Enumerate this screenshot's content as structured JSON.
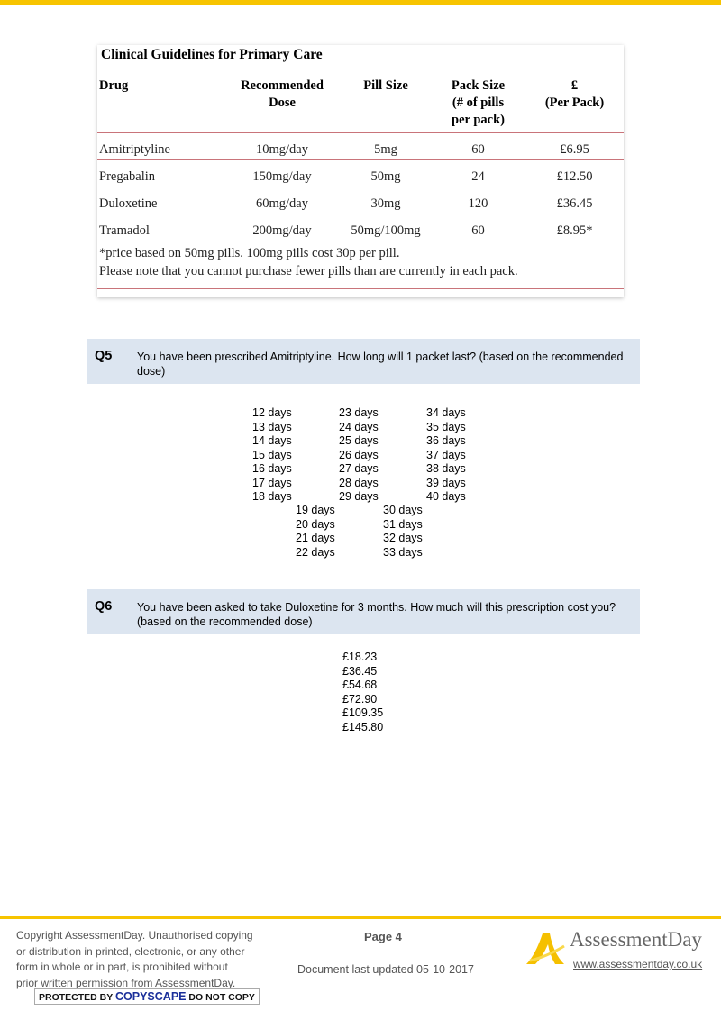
{
  "guidelines": {
    "title": "Clinical Guidelines for Primary Care",
    "headers": [
      "Drug",
      "Recommended Dose",
      "Pill Size",
      "Pack Size (# of pills per pack)",
      "£ (Per Pack)"
    ],
    "rows": [
      [
        "Amitriptyline",
        "10mg/day",
        "5mg",
        "60",
        "£6.95"
      ],
      [
        "Pregabalin",
        "150mg/day",
        "50mg",
        "24",
        "£12.50"
      ],
      [
        "Duloxetine",
        "60mg/day",
        "30mg",
        "120",
        "£36.45"
      ],
      [
        "Tramadol",
        "200mg/day",
        "50mg/100mg",
        "60",
        "£8.95*"
      ]
    ],
    "note1": "*price based on 50mg pills.  100mg pills cost 30p per pill.",
    "note2": "Please note that you cannot purchase fewer pills than are currently in each pack."
  },
  "q5": {
    "number": "Q5",
    "text": "You have been prescribed Amitriptyline. How long will 1 packet last? (based on the recommended dose)",
    "col1": [
      "12 days",
      "13 days",
      "14 days",
      "15 days",
      "16 days",
      "17 days",
      "18 days"
    ],
    "col2": [
      "23 days",
      "24 days",
      "25 days",
      "26 days",
      "27 days",
      "28 days",
      "29 days"
    ],
    "col3": [
      "34 days",
      "35 days",
      "36 days",
      "37 days",
      "38 days",
      "39 days",
      "40 days"
    ],
    "col4": [
      "19 days",
      "20 days",
      "21 days",
      "22 days"
    ],
    "col5": [
      "30 days",
      "31 days",
      "32 days",
      "33 days"
    ]
  },
  "q6": {
    "number": "Q6",
    "text": "You have been asked to take Duloxetine for 3 months.  How much will this prescription cost you? (based on the recommended dose)",
    "options": [
      "£18.23",
      "£36.45",
      "£54.68",
      "£72.90",
      "£109.35",
      "£145.80"
    ]
  },
  "footer": {
    "copyright": [
      "Copyright AssessmentDay. Unauthorised copying",
      "or distribution in printed, electronic, or any other",
      "form in whole or in part, is prohibited without",
      "prior written permission from AssessmentDay."
    ],
    "copyscape_pre": "PROTECTED BY",
    "copyscape_brand": "COPYSCAPE",
    "copyscape_post": "DO NOT COPY",
    "page": "Page 4",
    "updated": "Document last updated 05-10-2017",
    "logo": "AssessmentDay",
    "url": "www.assessmentday.co.uk"
  },
  "colors": {
    "accent": "#f7c400",
    "question_bg": "#dce5f0",
    "table_rule": "#c9747a"
  }
}
